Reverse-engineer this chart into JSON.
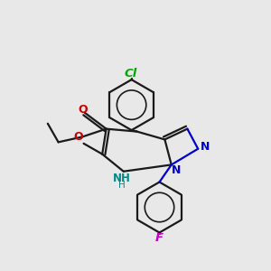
{
  "background_color": "#e8e8e8",
  "bond_color": "#1a1a1a",
  "nitrogen_color": "#0000cd",
  "oxygen_color": "#cc0000",
  "chlorine_color": "#00aa00",
  "fluorine_color": "#cc00cc",
  "nh_color": "#008888",
  "figsize": [
    3.0,
    3.0
  ],
  "dpi": 100,
  "xlim": [
    0,
    10
  ],
  "ylim": [
    0,
    10
  ]
}
